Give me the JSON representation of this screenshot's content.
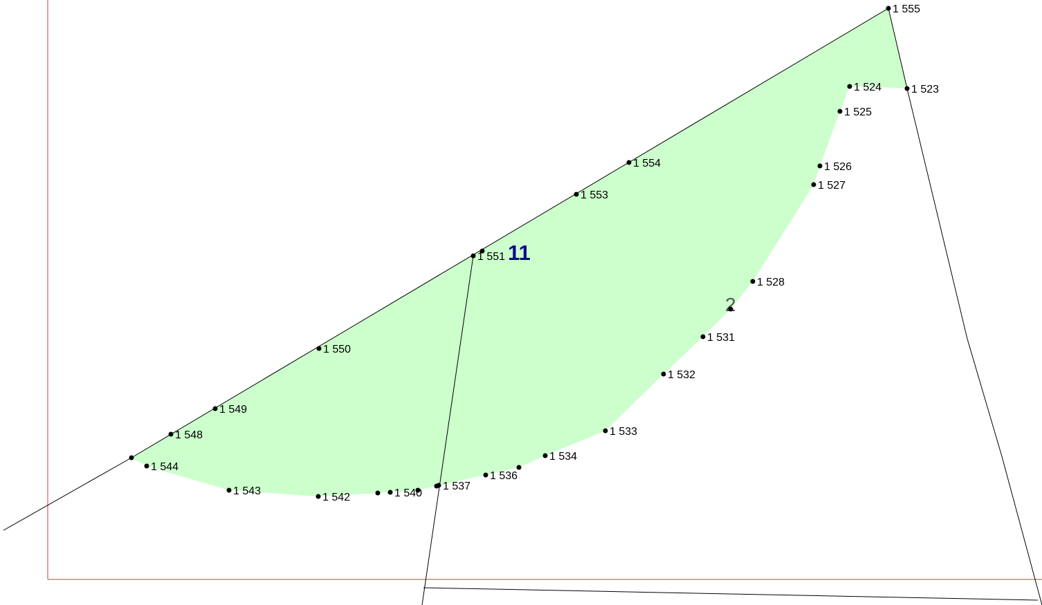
{
  "colors": {
    "parcel_fill": "#ccffcc",
    "parcel_number": "#0a0a8c",
    "parcel_subnumber": "#555555",
    "frame_line": "#e0303a",
    "boundary_line": "#000000"
  },
  "parcels": [
    {
      "id": "parcel-11",
      "label": "11"
    },
    {
      "id": "parcel-2",
      "label": "2"
    }
  ],
  "points": [
    {
      "id": "1555",
      "label": "1 555"
    },
    {
      "id": "1524",
      "label": "1 524"
    },
    {
      "id": "1523",
      "label": "1 523"
    },
    {
      "id": "1525",
      "label": "1 525"
    },
    {
      "id": "1526",
      "label": "1 526"
    },
    {
      "id": "1527",
      "label": "1 527"
    },
    {
      "id": "1554",
      "label": "1 554"
    },
    {
      "id": "1553",
      "label": "1 553"
    },
    {
      "id": "1551",
      "label": "1 551"
    },
    {
      "id": "1528",
      "label": "1 528"
    },
    {
      "id": "1531",
      "label": "1 531"
    },
    {
      "id": "1550",
      "label": "1 550"
    },
    {
      "id": "1532",
      "label": "1 532"
    },
    {
      "id": "1549",
      "label": "1 549"
    },
    {
      "id": "1548",
      "label": "1 548"
    },
    {
      "id": "1533",
      "label": "1 533"
    },
    {
      "id": "1534",
      "label": "1 534"
    },
    {
      "id": "1544",
      "label": "1 544"
    },
    {
      "id": "1536",
      "label": "1 536"
    },
    {
      "id": "1537",
      "label": "1 537"
    },
    {
      "id": "1543",
      "label": "1 543"
    },
    {
      "id": "1540",
      "label": "1 540"
    },
    {
      "id": "1542",
      "label": "1 542"
    }
  ]
}
